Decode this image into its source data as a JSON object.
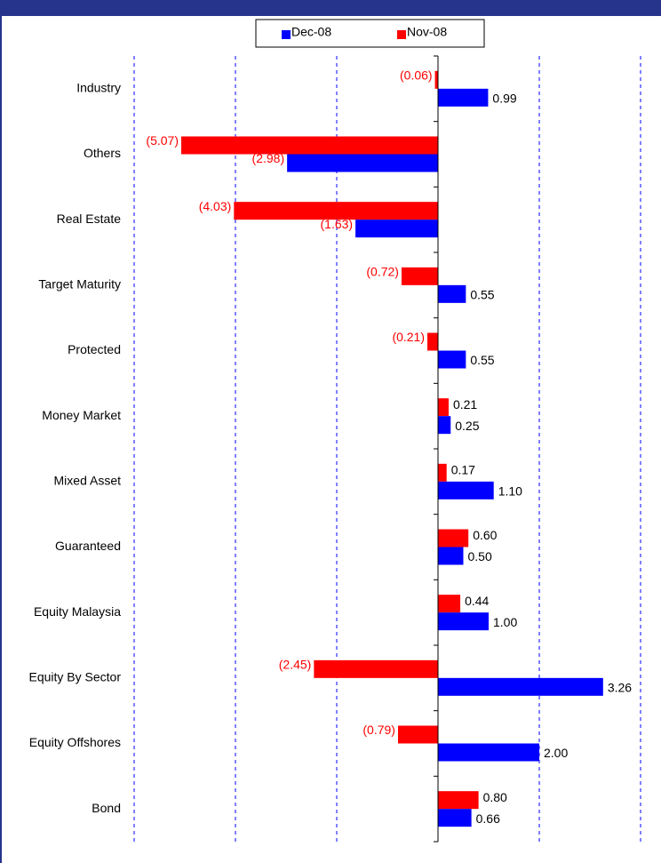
{
  "chart_data": {
    "type": "bar",
    "orientation": "horizontal",
    "categories": [
      "Industry",
      "Others",
      "Real Estate",
      "Target Maturity",
      "Protected",
      "Money Market",
      "Mixed Asset",
      "Guaranteed",
      "Equity Malaysia",
      "Equity By Sector",
      "Equity Offshores",
      "Bond"
    ],
    "series": [
      {
        "name": "Dec-08",
        "color": "#0000ff",
        "values": [
          0.99,
          -2.98,
          -1.63,
          0.55,
          0.55,
          0.25,
          1.1,
          0.5,
          1.0,
          3.26,
          2.0,
          0.66
        ],
        "value_labels": [
          "0.99",
          "(2.98)",
          "(1.63)",
          "0.55",
          "0.55",
          "0.25",
          "1.10",
          "0.50",
          "1.00",
          "3.26",
          "2.00",
          "0.66"
        ]
      },
      {
        "name": "Nov-08",
        "color": "#ff0000",
        "values": [
          -0.06,
          -5.07,
          -4.03,
          -0.72,
          -0.21,
          0.21,
          0.17,
          0.6,
          0.44,
          -2.45,
          -0.79,
          0.8
        ],
        "value_labels": [
          "(0.06)",
          "(5.07)",
          "(4.03)",
          "(0.72)",
          "(0.21)",
          "0.21",
          "0.17",
          "0.60",
          "0.44",
          "(2.45)",
          "(0.79)",
          "0.80"
        ]
      }
    ],
    "xlim": [
      -6,
      4
    ],
    "xticks": [
      -6,
      -4,
      -2,
      0,
      2,
      4
    ],
    "grid": true,
    "negative_label_color": "#ff0000",
    "legend": "top"
  }
}
